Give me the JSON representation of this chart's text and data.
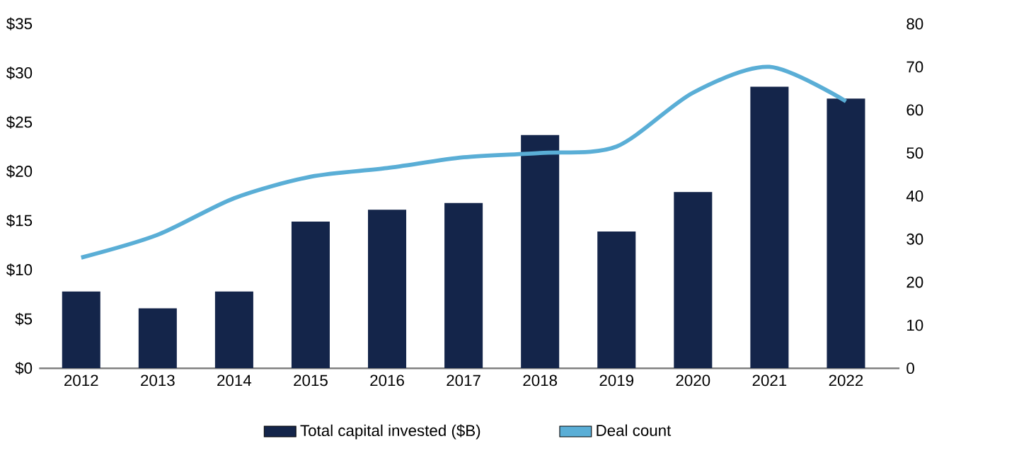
{
  "chart_data": {
    "type": "bar",
    "categories": [
      "2012",
      "2013",
      "2014",
      "2015",
      "2016",
      "2017",
      "2018",
      "2019",
      "2020",
      "2021",
      "2022"
    ],
    "series": [
      {
        "name": "Total capital invested ($B)",
        "color": "#14254a",
        "values": [
          7.8,
          6.1,
          7.8,
          14.9,
          16.1,
          16.8,
          23.7,
          13.9,
          17.9,
          28.6,
          27.4
        ]
      },
      {
        "name": "Deal count",
        "type": "line",
        "axis": "y2",
        "color": "#5aaed6",
        "values": [
          25.7,
          31,
          39.5,
          44.5,
          46.5,
          49,
          50,
          51.5,
          64,
          70,
          62
        ]
      }
    ],
    "ylim": [
      0,
      35
    ],
    "yticks": [
      {
        "value": 0,
        "label": "$0"
      },
      {
        "value": 5,
        "label": "$5"
      },
      {
        "value": 10,
        "label": "$10"
      },
      {
        "value": 15,
        "label": "$15"
      },
      {
        "value": 20,
        "label": "$20"
      },
      {
        "value": 25,
        "label": "$25"
      },
      {
        "value": 30,
        "label": "$30"
      },
      {
        "value": 35,
        "label": "$35"
      }
    ],
    "y2lim": [
      0,
      80
    ],
    "y2ticks": [
      0,
      10,
      20,
      30,
      40,
      50,
      60,
      70,
      80
    ],
    "legend": "bottom",
    "grid": false,
    "marker": "none"
  }
}
